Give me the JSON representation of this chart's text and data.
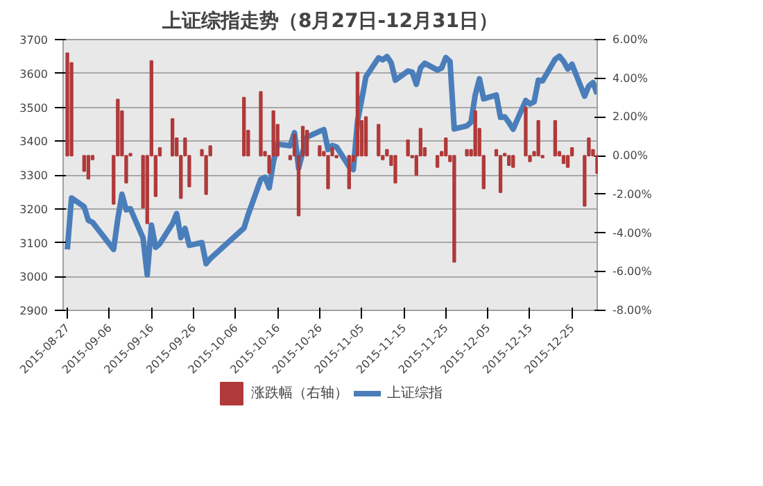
{
  "chart_data": {
    "type": "line",
    "title": "上证综指走势（8月27日-12月31日）",
    "x": [
      "2015-08-27",
      "2015-08-28",
      "2015-08-31",
      "2015-09-01",
      "2015-09-02",
      "2015-09-07",
      "2015-09-08",
      "2015-09-09",
      "2015-09-10",
      "2015-09-11",
      "2015-09-14",
      "2015-09-15",
      "2015-09-16",
      "2015-09-17",
      "2015-09-18",
      "2015-09-21",
      "2015-09-22",
      "2015-09-23",
      "2015-09-24",
      "2015-09-25",
      "2015-09-28",
      "2015-09-29",
      "2015-09-30",
      "2015-10-08",
      "2015-10-09",
      "2015-10-12",
      "2015-10-13",
      "2015-10-14",
      "2015-10-15",
      "2015-10-16",
      "2015-10-19",
      "2015-10-20",
      "2015-10-21",
      "2015-10-22",
      "2015-10-23",
      "2015-10-26",
      "2015-10-27",
      "2015-10-28",
      "2015-10-29",
      "2015-10-30",
      "2015-11-02",
      "2015-11-03",
      "2015-11-04",
      "2015-11-05",
      "2015-11-06",
      "2015-11-09",
      "2015-11-10",
      "2015-11-11",
      "2015-11-12",
      "2015-11-13",
      "2015-11-16",
      "2015-11-17",
      "2015-11-18",
      "2015-11-19",
      "2015-11-20",
      "2015-11-23",
      "2015-11-24",
      "2015-11-25",
      "2015-11-26",
      "2015-11-27",
      "2015-11-30",
      "2015-12-01",
      "2015-12-02",
      "2015-12-03",
      "2015-12-04",
      "2015-12-07",
      "2015-12-08",
      "2015-12-09",
      "2015-12-10",
      "2015-12-11",
      "2015-12-14",
      "2015-12-15",
      "2015-12-16",
      "2015-12-17",
      "2015-12-18",
      "2015-12-21",
      "2015-12-22",
      "2015-12-23",
      "2015-12-24",
      "2015-12-25",
      "2015-12-28",
      "2015-12-29",
      "2015-12-30",
      "2015-12-31"
    ],
    "series": [
      {
        "name": "涨跌幅（右轴）",
        "type": "bar",
        "axis": "y2",
        "color": "#b03a3a",
        "values": [
          5.3,
          4.8,
          -0.8,
          -1.2,
          -0.2,
          -2.5,
          2.9,
          2.3,
          -1.4,
          0.1,
          -2.7,
          -3.5,
          4.9,
          -2.1,
          0.4,
          1.9,
          0.9,
          -2.2,
          0.9,
          -1.6,
          0.3,
          -2.0,
          0.5,
          3.0,
          1.3,
          3.3,
          0.2,
          -0.9,
          2.3,
          1.6,
          -0.2,
          1.1,
          -3.1,
          1.5,
          1.3,
          0.5,
          0.2,
          -1.7,
          0.4,
          -0.1,
          -1.7,
          -0.3,
          4.3,
          1.8,
          2.0,
          1.6,
          -0.2,
          0.3,
          -0.5,
          -1.4,
          0.8,
          -0.1,
          -1.0,
          1.4,
          0.4,
          -0.6,
          0.2,
          0.9,
          -0.3,
          -5.5,
          0.3,
          0.3,
          2.3,
          1.4,
          -1.7,
          0.3,
          -1.9,
          0.1,
          -0.5,
          -0.6,
          2.5,
          -0.3,
          0.2,
          1.8,
          -0.1,
          1.8,
          0.2,
          -0.4,
          -0.6,
          0.4,
          -2.6,
          0.9,
          0.3,
          -0.9
        ]
      },
      {
        "name": "上证综指",
        "color": "#4a7ebb",
        "values": [
          3080,
          3232,
          3206,
          3166,
          3160,
          3080,
          3170,
          3243,
          3197,
          3200,
          3114,
          3005,
          3152,
          3086,
          3097,
          3156,
          3186,
          3115,
          3142,
          3092,
          3100,
          3038,
          3053,
          3143,
          3183,
          3287,
          3293,
          3262,
          3338,
          3391,
          3386,
          3425,
          3320,
          3369,
          3412,
          3429,
          3434,
          3375,
          3387,
          3383,
          3325,
          3316,
          3459,
          3522,
          3590,
          3646,
          3640,
          3650,
          3632,
          3580,
          3607,
          3604,
          3568,
          3617,
          3630,
          3610,
          3616,
          3647,
          3635,
          3436,
          3445,
          3456,
          3537,
          3584,
          3525,
          3536,
          3470,
          3472,
          3455,
          3435,
          3520,
          3510,
          3516,
          3580,
          3578,
          3642,
          3651,
          3636,
          3613,
          3627,
          3533,
          3563,
          3573,
          3539
        ]
      }
    ],
    "xlim": [
      "2015-08-26",
      "2015-12-31"
    ],
    "xticks": [
      "2015-08-27",
      "2015-09-06",
      "2015-09-16",
      "2015-09-26",
      "2015-10-06",
      "2015-10-16",
      "2015-10-26",
      "2015-11-05",
      "2015-11-15",
      "2015-11-25",
      "2015-12-05",
      "2015-12-15",
      "2015-12-25"
    ],
    "ylim": [
      2900,
      3700
    ],
    "yticks": [
      2900,
      3000,
      3100,
      3200,
      3300,
      3400,
      3500,
      3600,
      3700
    ],
    "y2lim": [
      -8,
      6
    ],
    "y2ticks": [
      {
        "value": -8,
        "label": "-8.00%"
      },
      {
        "value": -6,
        "label": "-6.00%"
      },
      {
        "value": -4,
        "label": "-4.00%"
      },
      {
        "value": -2,
        "label": "-2.00%"
      },
      {
        "value": 0,
        "label": "0.00%"
      },
      {
        "value": 2,
        "label": "2.00%"
      },
      {
        "value": 4,
        "label": "4.00%"
      },
      {
        "value": 6,
        "label": "6.00%"
      }
    ],
    "grid": "y",
    "legend": "bottom"
  }
}
